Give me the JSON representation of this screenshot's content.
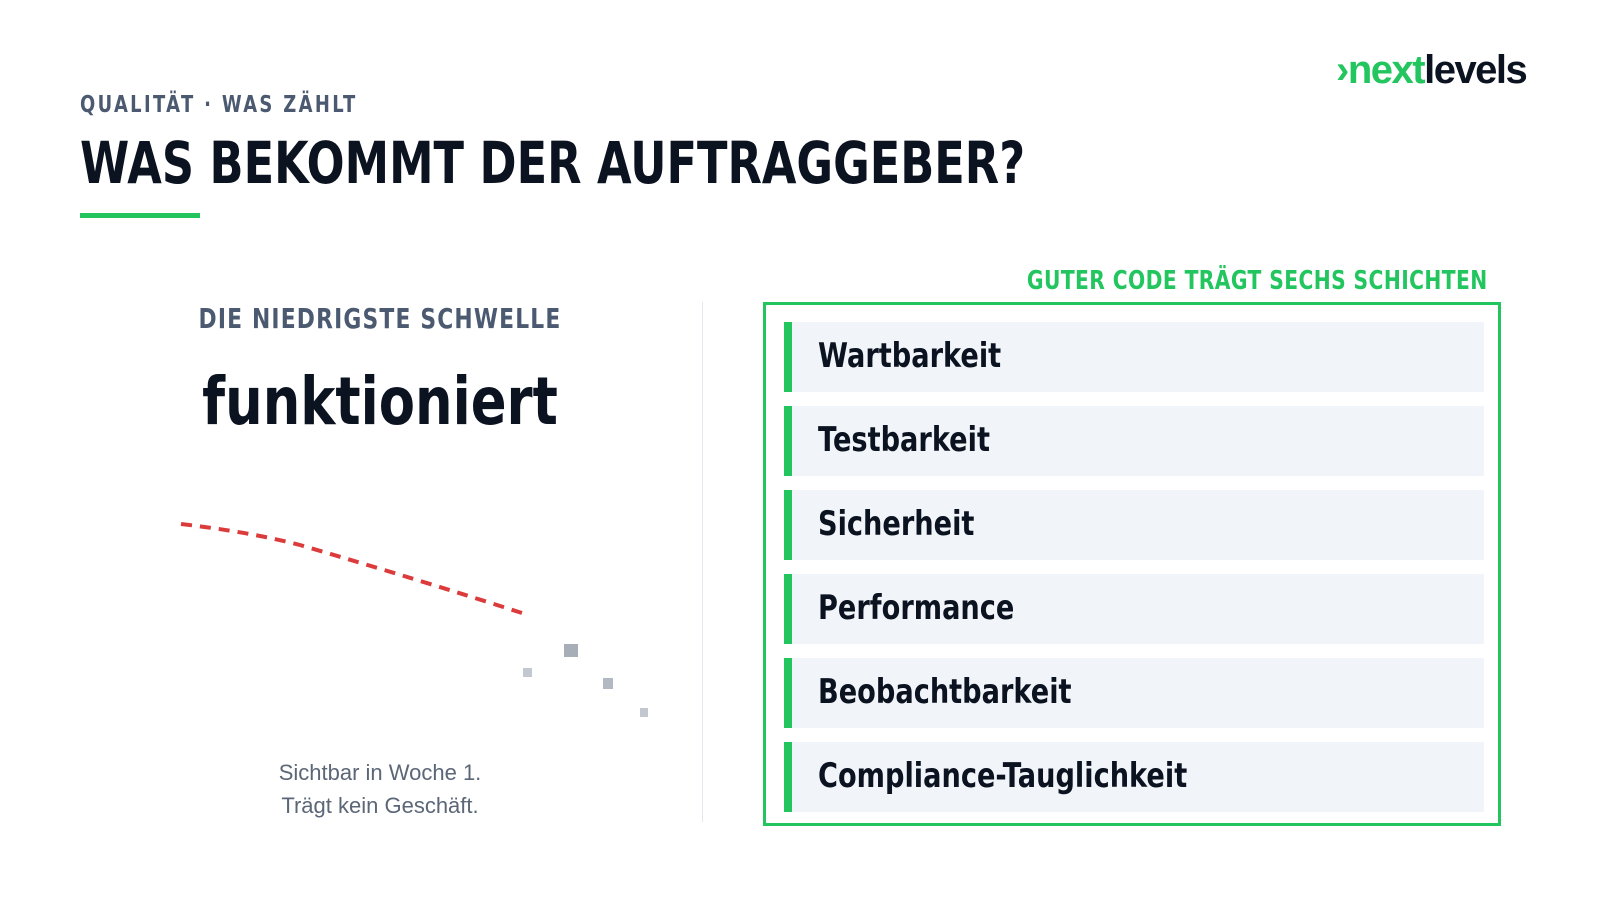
{
  "brand": {
    "chevron": "›",
    "logo_part1": "next",
    "logo_part2": "levels",
    "accent_color": "#22c55e"
  },
  "header": {
    "eyebrow": "QUALITÄT · WAS ZÄHLT",
    "title": "WAS BEKOMMT DER AUFTRAGGEBER?"
  },
  "left_panel": {
    "heading": "DIE NIEDRIGSTE SCHWELLE",
    "big_word": "funktioniert",
    "caption_line1": "Sichtbar in Woche 1.",
    "caption_line2": "Trägt kein Geschäft.",
    "curve_color": "#dc3b3b"
  },
  "right_panel": {
    "label": "GUTER CODE TRÄGT SECHS SCHICHTEN",
    "layers": [
      {
        "label": "Wartbarkeit"
      },
      {
        "label": "Testbarkeit"
      },
      {
        "label": "Sicherheit"
      },
      {
        "label": "Performance"
      },
      {
        "label": "Beobachtbarkeit"
      },
      {
        "label": "Compliance-Tauglichkeit"
      }
    ]
  }
}
